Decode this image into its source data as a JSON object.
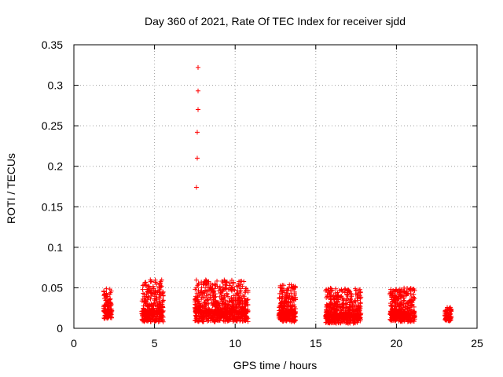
{
  "chart_data": {
    "type": "scatter",
    "title": "Day 360 of 2021, Rate Of TEC Index for receiver sjdd",
    "xlabel": "GPS time / hours",
    "ylabel": "ROTI / TECUs",
    "xlim": [
      0,
      25
    ],
    "ylim": [
      0,
      0.35
    ],
    "xticks": [
      0,
      5,
      10,
      15,
      20,
      25
    ],
    "xtick_labels": [
      "0",
      "5",
      "10",
      "15",
      "20",
      "25"
    ],
    "yticks": [
      0,
      0.05,
      0.1,
      0.15,
      0.2,
      0.25,
      0.3,
      0.35
    ],
    "ytick_labels": [
      "0",
      "0.05",
      "0.1",
      "0.15",
      "0.2",
      "0.25",
      "0.3",
      "0.35"
    ],
    "grid": true,
    "marker": "+",
    "color": "#ff0000",
    "series": [
      {
        "name": "ROTI",
        "clusters": [
          {
            "x_range": [
              1.85,
              2.35
            ],
            "y_range": [
              0.012,
              0.05
            ],
            "density": 140
          },
          {
            "x_range": [
              4.2,
              5.55
            ],
            "y_range": [
              0.008,
              0.06
            ],
            "density": 360
          },
          {
            "x_range": [
              7.5,
              10.8
            ],
            "y_range": [
              0.008,
              0.06
            ],
            "density": 800
          },
          {
            "x_range": [
              12.7,
              13.75
            ],
            "y_range": [
              0.008,
              0.054
            ],
            "density": 300
          },
          {
            "x_range": [
              15.6,
              17.8
            ],
            "y_range": [
              0.006,
              0.05
            ],
            "density": 560
          },
          {
            "x_range": [
              19.6,
              21.15
            ],
            "y_range": [
              0.008,
              0.05
            ],
            "density": 420
          },
          {
            "x_range": [
              23.0,
              23.4
            ],
            "y_range": [
              0.009,
              0.026
            ],
            "density": 90
          }
        ],
        "outliers": [
          {
            "x": 7.7,
            "y": 0.322
          },
          {
            "x": 7.7,
            "y": 0.293
          },
          {
            "x": 7.7,
            "y": 0.27
          },
          {
            "x": 7.65,
            "y": 0.242
          },
          {
            "x": 7.65,
            "y": 0.21
          },
          {
            "x": 7.6,
            "y": 0.174
          }
        ]
      }
    ]
  }
}
